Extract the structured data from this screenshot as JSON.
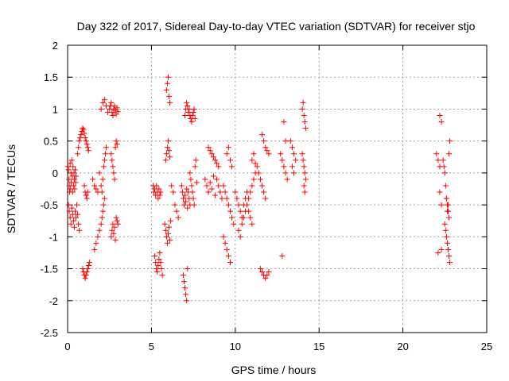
{
  "chart_data": {
    "type": "scatter",
    "title": "Day 322 of 2017, Sidereal Day-to-day VTEC variation (SDTVAR) for receiver stjo",
    "xlabel": "GPS time / hours",
    "ylabel": "SDTVAR / TECUs",
    "xlim": [
      0,
      25
    ],
    "ylim": [
      -2.5,
      2
    ],
    "xticks": [
      0,
      5,
      10,
      15,
      20,
      25
    ],
    "yticks": [
      -2.5,
      -2,
      -1.5,
      -1,
      -0.5,
      0,
      0.5,
      1,
      1.5,
      2
    ],
    "xtick_labels": [
      "0",
      "5",
      "10",
      "15",
      "20",
      "25"
    ],
    "ytick_labels": [
      "-2.5",
      "-2",
      "-1.5",
      "-1",
      "-0.5",
      "0",
      "0.5",
      "1",
      "1.5",
      "2"
    ],
    "grid": true,
    "marker": "+",
    "color": "#ff0000",
    "series": [
      {
        "name": "SDTVAR",
        "x": [
          0.02,
          0.05,
          0.08,
          0.1,
          0.12,
          0.15,
          0.18,
          0.2,
          0.22,
          0.25,
          0.28,
          0.3,
          0.32,
          0.35,
          0.38,
          0.4,
          0.42,
          0.45,
          0.48,
          0.5,
          0.05,
          0.1,
          0.15,
          0.2,
          0.25,
          0.3,
          0.35,
          0.4,
          0.45,
          0.5,
          0.55,
          0.6,
          0.65,
          0.7,
          0.6,
          0.65,
          0.7,
          0.75,
          0.8,
          0.85,
          0.9,
          0.95,
          1.0,
          1.05,
          1.1,
          1.15,
          1.2,
          1.25,
          0.9,
          0.95,
          1.0,
          1.05,
          1.1,
          1.15,
          1.2,
          1.25,
          1.3,
          1.0,
          1.05,
          1.1,
          1.15,
          1.2,
          1.5,
          1.6,
          1.7,
          1.8,
          1.9,
          2.0,
          2.1,
          2.2,
          2.3,
          2.4,
          1.6,
          1.7,
          1.8,
          1.9,
          2.0,
          2.05,
          2.1,
          2.15,
          2.2,
          2.0,
          2.05,
          2.1,
          2.15,
          2.2,
          2.25,
          2.3,
          2.5,
          2.55,
          2.6,
          2.65,
          2.7,
          2.75,
          2.8,
          2.85,
          2.9,
          2.95,
          3.0,
          2.6,
          2.65,
          2.7,
          2.75,
          2.8,
          2.85,
          2.9,
          2.95,
          2.6,
          2.65,
          2.7,
          2.75,
          2.8,
          2.85,
          2.9,
          2.95,
          3.0,
          5.1,
          5.15,
          5.2,
          5.25,
          5.3,
          5.35,
          5.4,
          5.45,
          5.5,
          5.55,
          5.2,
          5.25,
          5.3,
          5.35,
          5.4,
          5.45,
          5.5,
          5.55,
          5.6,
          5.65,
          5.8,
          5.85,
          5.9,
          5.95,
          6.0,
          6.05,
          6.1,
          6.15,
          5.85,
          5.9,
          5.95,
          6.0,
          6.05,
          6.1,
          5.9,
          5.95,
          6.0,
          6.05,
          6.1,
          6.2,
          6.3,
          6.4,
          6.5,
          6.6,
          6.8,
          6.85,
          6.9,
          6.95,
          7.0,
          7.05,
          7.1,
          7.15,
          7.2,
          7.25,
          7.3,
          6.9,
          6.95,
          7.0,
          7.05,
          7.1,
          7.15,
          7.0,
          7.05,
          7.1,
          7.15,
          7.2,
          7.25,
          7.3,
          7.35,
          7.4,
          7.45,
          7.5,
          7.55,
          7.6,
          7.3,
          7.35,
          7.4,
          7.45,
          7.5,
          7.55,
          7.6,
          7.65,
          7.7,
          8.2,
          8.3,
          8.4,
          8.5,
          8.6,
          8.7,
          8.8,
          8.9,
          9.0,
          9.1,
          9.2,
          8.4,
          8.5,
          8.6,
          8.7,
          8.8,
          8.9,
          9.0,
          9.3,
          9.4,
          9.5,
          9.6,
          9.7,
          9.8,
          9.9,
          9.3,
          9.4,
          9.5,
          9.6,
          9.7,
          9.5,
          9.6,
          9.7,
          9.8,
          10.0,
          10.1,
          10.2,
          10.3,
          10.4,
          10.5,
          10.6,
          10.7,
          10.8,
          10.9,
          11.0,
          10.2,
          10.3,
          10.4,
          10.5,
          10.6,
          10.7,
          10.8,
          10.9,
          11.0,
          11.1,
          11.2,
          11.0,
          11.1,
          11.2,
          11.3,
          11.4,
          11.5,
          11.6,
          11.7,
          11.8,
          11.5,
          11.6,
          11.7,
          11.8,
          11.9,
          12.0,
          11.6,
          11.7,
          11.8,
          11.9,
          12.0,
          12.7,
          12.8,
          12.9,
          13.0,
          13.1,
          12.8,
          12.9,
          13.0,
          13.3,
          13.4,
          13.5,
          13.6,
          13.5,
          13.4,
          14.0,
          14.05,
          14.1,
          14.15,
          14.2,
          14.0,
          14.05,
          14.1,
          14.15,
          14.2,
          14.1,
          14.15,
          22.0,
          22.1,
          22.2,
          22.3,
          22.1,
          22.2,
          22.3,
          22.2,
          22.3,
          22.4,
          22.45,
          22.5,
          22.55,
          22.6,
          22.65,
          22.7,
          22.75,
          22.8,
          22.5,
          22.55,
          22.6,
          22.65,
          22.7,
          22.75,
          22.8,
          22.6,
          22.65,
          22.7,
          22.75
        ],
        "y": [
          0.1,
          0.05,
          -0.1,
          -0.2,
          -0.3,
          0.15,
          -0.25,
          0.0,
          -0.15,
          0.2,
          -0.05,
          -0.3,
          0.1,
          -0.2,
          0.0,
          -0.1,
          -0.25,
          0.05,
          -0.15,
          -0.05,
          -0.5,
          -0.6,
          -0.7,
          -0.8,
          -0.55,
          -0.65,
          -0.75,
          -0.85,
          -0.6,
          -0.7,
          -0.5,
          -0.65,
          -0.8,
          -0.9,
          0.3,
          0.4,
          0.5,
          0.55,
          0.6,
          0.65,
          0.7,
          0.68,
          0.62,
          0.55,
          0.5,
          0.45,
          0.4,
          0.35,
          -1.5,
          -1.55,
          -1.6,
          -1.65,
          -1.6,
          -1.55,
          -1.5,
          -1.45,
          -1.4,
          -0.2,
          -0.3,
          -0.35,
          -0.4,
          -0.3,
          -0.1,
          -0.2,
          -0.25,
          -0.3,
          0.0,
          1.0,
          1.1,
          1.15,
          1.05,
          0.95,
          -1.2,
          -1.1,
          -1.0,
          -0.9,
          -0.8,
          -0.7,
          -0.6,
          -0.5,
          -0.4,
          -0.2,
          -0.3,
          -0.1,
          0.1,
          0.2,
          0.3,
          0.4,
          1.0,
          1.05,
          1.1,
          0.95,
          0.9,
          1.0,
          1.05,
          0.98,
          0.92,
          1.02,
          0.96,
          0.3,
          0.2,
          0.1,
          0.0,
          -0.1,
          0.4,
          0.5,
          0.45,
          -1.0,
          -0.9,
          -0.8,
          -0.95,
          -0.85,
          -1.05,
          -0.7,
          -0.75,
          -0.8,
          -0.2,
          -0.3,
          -0.25,
          -0.35,
          -0.2,
          -0.3,
          -0.4,
          -0.25,
          -0.35,
          -0.3,
          -1.3,
          -1.4,
          -1.5,
          -1.55,
          -1.45,
          -1.35,
          -1.25,
          -1.4,
          -1.5,
          -1.6,
          -0.8,
          -0.9,
          -1.0,
          -1.1,
          -0.95,
          -0.85,
          -1.05,
          -0.75,
          0.2,
          0.3,
          0.4,
          0.5,
          0.35,
          0.25,
          1.3,
          1.4,
          1.5,
          1.2,
          1.1,
          -0.2,
          -0.3,
          -0.5,
          -0.6,
          -0.7,
          -0.2,
          -0.3,
          -0.4,
          -0.5,
          -0.35,
          -0.45,
          -0.25,
          -0.55,
          -0.3,
          -0.4,
          -0.5,
          -1.6,
          -1.7,
          -1.8,
          -1.9,
          -2.0,
          -1.5,
          0.9,
          1.0,
          1.1,
          1.05,
          0.95,
          1.0,
          0.9,
          0.85,
          0.8,
          0.9,
          0.95,
          1.0,
          0.85,
          0.0,
          -0.1,
          -0.2,
          -0.3,
          -0.4,
          -0.5,
          0.1,
          0.2,
          -0.15,
          -0.1,
          -0.2,
          -0.3,
          -0.15,
          -0.25,
          -0.05,
          -0.35,
          -0.1,
          -0.2,
          -0.3,
          -0.4,
          0.4,
          0.35,
          0.3,
          0.25,
          0.2,
          0.15,
          0.1,
          -0.2,
          -0.3,
          -0.4,
          -0.5,
          -0.6,
          -0.7,
          -0.8,
          -1.0,
          -1.1,
          -1.2,
          -1.3,
          -1.4,
          0.3,
          0.4,
          0.2,
          0.1,
          -0.3,
          -0.4,
          -0.5,
          -0.6,
          -0.7,
          -0.5,
          -0.4,
          -0.3,
          -0.6,
          -0.7,
          -0.8,
          -0.9,
          -1.0,
          -0.8,
          -0.7,
          -0.6,
          -0.5,
          -0.4,
          -0.3,
          -0.2,
          -0.1,
          0.0,
          0.2,
          0.3,
          0.15,
          0.1,
          0.0,
          -0.1,
          -0.2,
          -0.3,
          -0.4,
          -1.5,
          -1.55,
          -1.6,
          -1.65,
          -1.6,
          -1.55,
          0.6,
          0.5,
          0.4,
          0.35,
          0.3,
          0.3,
          0.2,
          0.1,
          0.0,
          -0.1,
          -1.3,
          0.8,
          0.5,
          0.5,
          0.4,
          0.3,
          0.2,
          0.0,
          0.1,
          1.0,
          1.1,
          0.9,
          0.8,
          0.7,
          0.3,
          0.2,
          0.1,
          0.0,
          -0.1,
          -0.2,
          -0.3,
          0.3,
          0.2,
          0.1,
          -1.2,
          -1.25,
          -0.3,
          -0.5,
          0.9,
          0.8,
          0.2,
          0.1,
          0.0,
          -0.2,
          -0.4,
          -0.6,
          -0.5,
          0.3,
          0.5,
          -0.8,
          -0.9,
          -1.0,
          -1.1,
          -1.2,
          -1.3,
          -1.4,
          -0.4,
          -0.5,
          -0.6,
          -0.7
        ]
      }
    ]
  }
}
